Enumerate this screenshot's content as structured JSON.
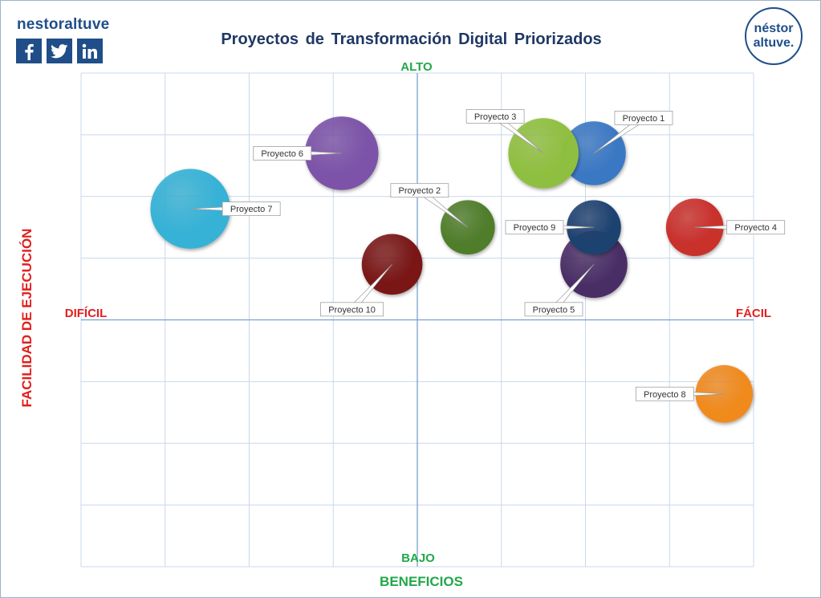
{
  "brand": {
    "name": "nestoraltuve",
    "social_icons": [
      "facebook-icon",
      "twitter-icon",
      "linkedin-icon"
    ],
    "logo_line1": "néstor",
    "logo_line2": "altuve."
  },
  "colors": {
    "brand_blue": "#1f4e89",
    "title": "#1f3864",
    "axis_green": "#21a84a",
    "axis_red": "#e0201e",
    "grid": "#c8d8ec"
  },
  "chart_data": {
    "type": "bubble",
    "title": "Proyectos de Transformación Digital Priorizados",
    "xlabel": "BENEFICIOS",
    "ylabel": "FACILIDAD DE EJECUCIÓN",
    "quadrant_labels": {
      "top": "ALTO",
      "bottom": "BAJO",
      "left": "DIFÍCIL",
      "right": "FÁCIL"
    },
    "xlim": [
      -4,
      4
    ],
    "ylim": [
      -4,
      4
    ],
    "grid": true,
    "series": [
      {
        "label": "Proyecto 1",
        "x": 2.1,
        "y": 2.7,
        "size": 1.0,
        "color": "#3b78c4",
        "label_pos": "upper-right"
      },
      {
        "label": "Proyecto 2",
        "x": 0.6,
        "y": 1.5,
        "size": 0.85,
        "color": "#4f7d2a",
        "label_pos": "upper-left"
      },
      {
        "label": "Proyecto 3",
        "x": 1.5,
        "y": 2.7,
        "size": 1.1,
        "color": "#8fbf3f",
        "label_pos": "upper-left"
      },
      {
        "label": "Proyecto 4",
        "x": 3.3,
        "y": 1.5,
        "size": 0.9,
        "color": "#c9302c",
        "label_pos": "right"
      },
      {
        "label": "Proyecto 5",
        "x": 2.1,
        "y": 0.9,
        "size": 1.05,
        "color": "#4a2f66",
        "label_pos": "lower-left"
      },
      {
        "label": "Proyecto 6",
        "x": -0.9,
        "y": 2.7,
        "size": 1.15,
        "color": "#7b52a8",
        "label_pos": "left"
      },
      {
        "label": "Proyecto 7",
        "x": -2.7,
        "y": 1.8,
        "size": 1.25,
        "color": "#36b2d6",
        "label_pos": "right"
      },
      {
        "label": "Proyecto 8",
        "x": 3.65,
        "y": -1.2,
        "size": 0.9,
        "color": "#f08a1e",
        "label_pos": "left"
      },
      {
        "label": "Proyecto 9",
        "x": 2.1,
        "y": 1.5,
        "size": 0.85,
        "color": "#1e4270",
        "label_pos": "left"
      },
      {
        "label": "Proyecto 10",
        "x": -0.3,
        "y": 0.9,
        "size": 0.95,
        "color": "#7a1515",
        "label_pos": "lower-left"
      }
    ]
  }
}
